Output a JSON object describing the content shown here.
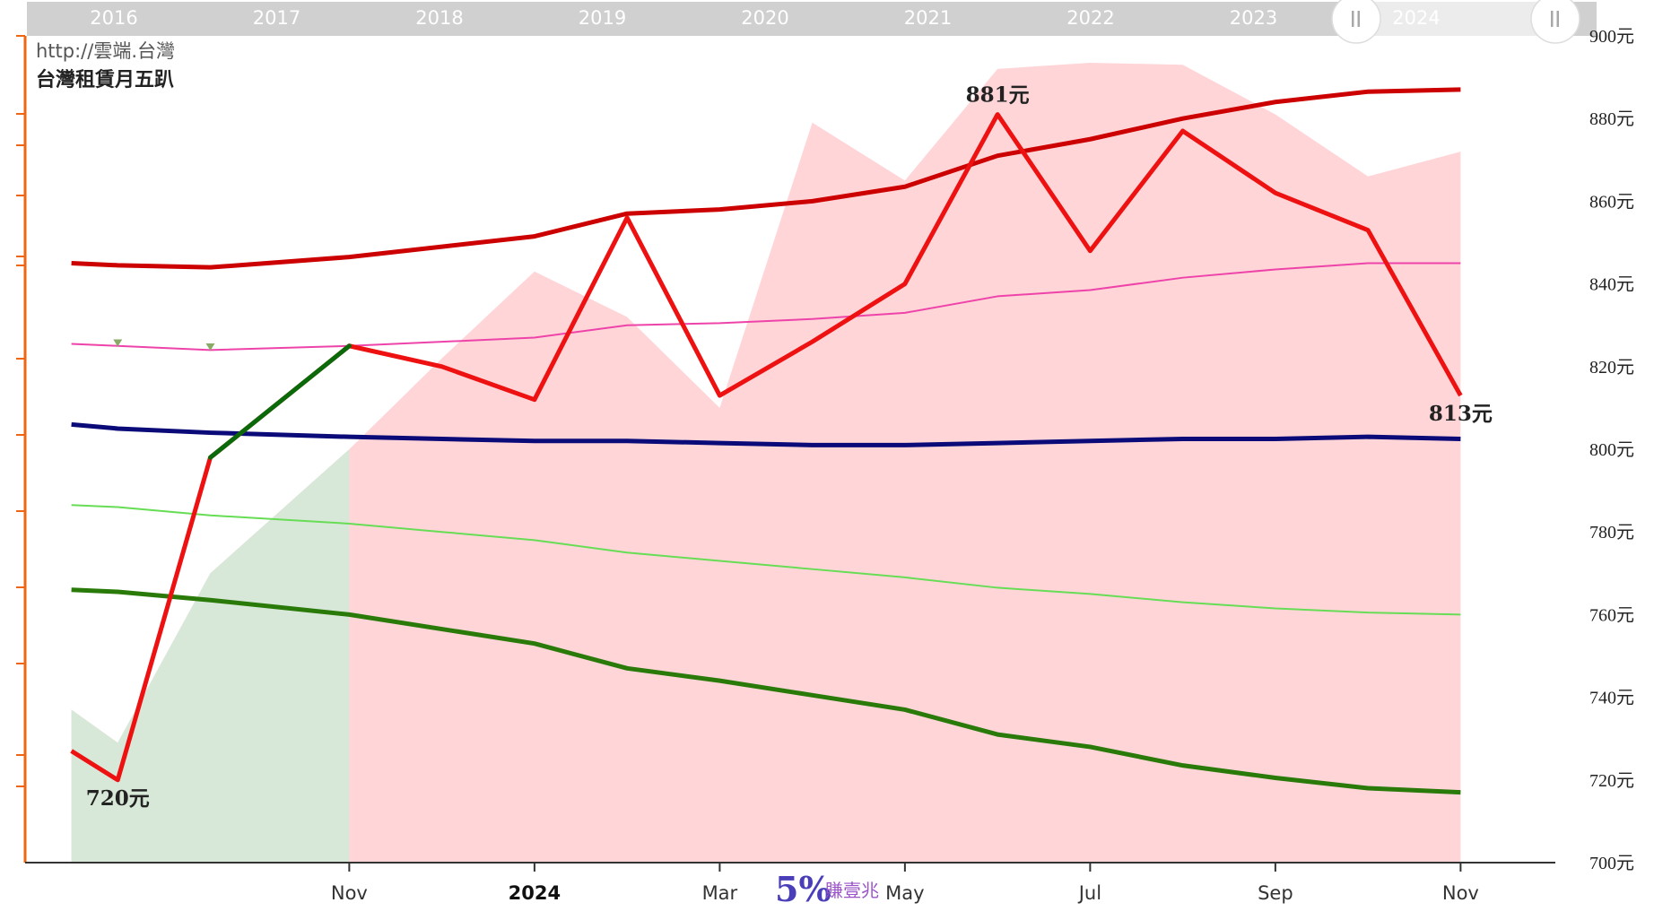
{
  "header": {
    "source": "http://雲端.台灣",
    "title": "台灣租賃月五趴"
  },
  "navigator": {
    "years": [
      "2016",
      "2017",
      "2018",
      "2019",
      "2020",
      "2021",
      "2022",
      "2023",
      "2024"
    ],
    "left_handle_icon": "pause-bars-icon",
    "right_handle_icon": "pause-bars-icon"
  },
  "watermark": {
    "big": "5%",
    "small": "賺壹兆"
  },
  "colors": {
    "price_line": "#ee1111",
    "price_up_segment": "#0a6a0a",
    "upper_band": "#cc0000",
    "upper_mid": "#ee44aa",
    "center": "#0a0a78",
    "lower_mid": "#66dd55",
    "lower_band": "#2a7a0a",
    "area_red": "#ffd5d8",
    "area_green": "#d8e8d8",
    "axis_orange": "#ee6611"
  },
  "chart_data": {
    "type": "line",
    "title": "台灣租賃月五趴",
    "y_unit": "元",
    "ylim": [
      700,
      900
    ],
    "y_ticks": [
      700,
      720,
      740,
      760,
      780,
      800,
      820,
      840,
      860,
      880,
      900
    ],
    "y_tick_labels": [
      "700元",
      "720元",
      "740元",
      "760元",
      "780元",
      "800元",
      "820元",
      "840元",
      "860元",
      "880元",
      "900元"
    ],
    "x_ticks": [
      "Nov",
      "2024",
      "Mar",
      "May",
      "Jul",
      "Sep",
      "Nov"
    ],
    "x_tick_positions": [
      6,
      8,
      10,
      12,
      14,
      16,
      18
    ],
    "x": [
      3,
      3.5,
      4.5,
      6,
      7,
      8,
      9,
      10,
      11,
      12,
      13,
      14,
      15,
      16,
      17,
      18
    ],
    "series": [
      {
        "key": "price",
        "values": [
          727,
          720,
          798,
          825,
          820,
          812,
          856,
          813,
          826,
          840,
          881,
          848,
          877,
          862,
          853,
          813
        ]
      },
      {
        "key": "upper_band",
        "values": [
          845,
          844.5,
          844,
          846.5,
          849,
          851.5,
          857,
          858,
          860,
          863.5,
          871,
          875,
          880,
          884,
          886.5,
          887
        ]
      },
      {
        "key": "upper_mid",
        "values": [
          825.5,
          825,
          824,
          825,
          826,
          827,
          830,
          830.5,
          831.5,
          833,
          837,
          838.5,
          841.5,
          843.5,
          845,
          845
        ]
      },
      {
        "key": "center",
        "values": [
          806,
          805,
          804,
          803,
          802.5,
          802,
          802,
          801.5,
          801,
          801,
          801.5,
          802,
          802.5,
          802.5,
          803,
          802.5
        ]
      },
      {
        "key": "lower_mid",
        "values": [
          786.5,
          786,
          784,
          782,
          780,
          778,
          775,
          773,
          771,
          769,
          766.5,
          765,
          763,
          761.5,
          760.5,
          760
        ]
      },
      {
        "key": "lower_band",
        "values": [
          766,
          765.5,
          763.5,
          760,
          756.5,
          753,
          747,
          744,
          740.5,
          737,
          731,
          728,
          723.5,
          720.5,
          718,
          717
        ]
      },
      {
        "key": "area",
        "values": [
          737,
          729,
          770,
          800,
          822,
          843,
          832,
          810,
          879,
          865,
          892,
          893.5,
          893,
          881,
          866,
          872
        ]
      }
    ],
    "green_area_until_x": 6,
    "markers": [
      {
        "x": 3.5,
        "y": 825.5
      },
      {
        "x": 4.5,
        "y": 824.5
      }
    ],
    "annotations": [
      {
        "text": "720元",
        "x": 3.5,
        "y": 720,
        "pos": "below"
      },
      {
        "text": "881元",
        "x": 13,
        "y": 881,
        "pos": "above"
      },
      {
        "text": "813元",
        "x": 18,
        "y": 813,
        "pos": "below"
      }
    ],
    "grid": false,
    "legend": "none"
  }
}
